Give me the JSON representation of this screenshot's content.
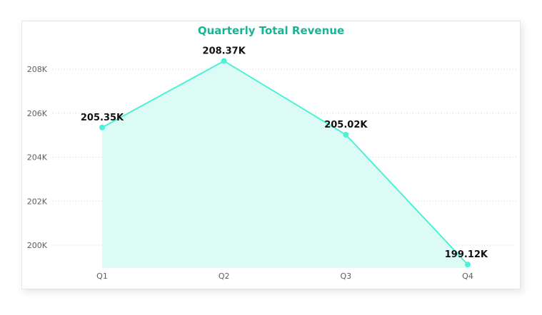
{
  "chart_data": {
    "type": "area",
    "title": "Quarterly Total Revenue",
    "xlabel": "",
    "ylabel": "",
    "categories": [
      "Q1",
      "Q2",
      "Q3",
      "Q4"
    ],
    "values": [
      205350,
      208370,
      205020,
      199120
    ],
    "data_labels": [
      "205.35K",
      "208.37K",
      "205.02K",
      "199.12K"
    ],
    "y_ticks": [
      200000,
      202000,
      204000,
      206000,
      208000
    ],
    "y_tick_labels": [
      "200K",
      "202K",
      "204K",
      "206K",
      "208K"
    ],
    "ylim": [
      199050,
      208840
    ],
    "grid": true,
    "legend": "none"
  },
  "colors": {
    "title": "#1ab394",
    "line": "#4df2d6",
    "area_fill": "#dcfbf4",
    "marker": "#4df2d6",
    "gridline": "#d0d0d0"
  }
}
